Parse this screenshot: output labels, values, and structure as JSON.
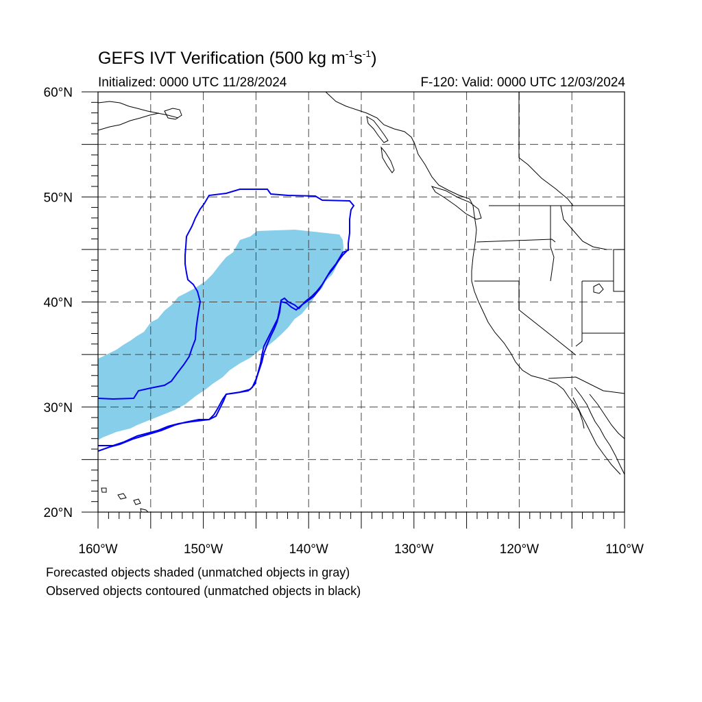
{
  "title": {
    "prefix": "GEFS IVT Verification (500 kg m",
    "exp1": "-1",
    "mid": "s",
    "exp2": "-1",
    "suffix": ")"
  },
  "initialized": "Initialized: 0000 UTC 11/28/2024",
  "valid": "F-120: Valid: 0000 UTC 12/03/2024",
  "map": {
    "lon_range": [
      -160,
      -110
    ],
    "lat_range": [
      20,
      60
    ],
    "lat_labels": [
      {
        "lat": 60,
        "text": "60°N"
      },
      {
        "lat": 50,
        "text": "50°N"
      },
      {
        "lat": 40,
        "text": "40°N"
      },
      {
        "lat": 30,
        "text": "30°N"
      },
      {
        "lat": 20,
        "text": "20°N"
      }
    ],
    "lon_labels": [
      {
        "lon": -160,
        "text": "160°W"
      },
      {
        "lon": -150,
        "text": "150°W"
      },
      {
        "lon": -140,
        "text": "140°W"
      },
      {
        "lon": -130,
        "text": "130°W"
      },
      {
        "lon": -120,
        "text": "120°W"
      },
      {
        "lon": -110,
        "text": "110°W"
      }
    ],
    "grid": "dashed every 5 degrees",
    "colors": {
      "forecast_fill": "#87CEEB",
      "observed_contour": "#0000EE",
      "coastline": "#000000",
      "grid": "#444444"
    }
  },
  "captions": {
    "forecast": "Forecasted objects shaded (unmatched objects in gray)",
    "observed": "Observed objects contoured (unmatched objects in black)"
  }
}
